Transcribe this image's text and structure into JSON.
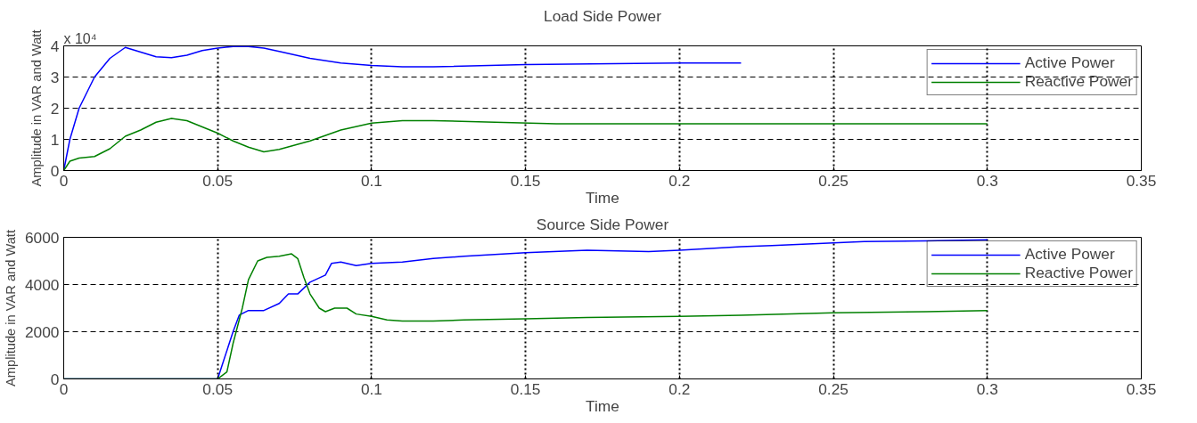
{
  "chart_data": [
    {
      "type": "line",
      "title": "Load Side Power",
      "xlabel": "Time",
      "ylabel": "Amplitude in VAR and Watt",
      "annotations": [
        "x 10⁴"
      ],
      "xlim": [
        0,
        0.35
      ],
      "xticks": [
        0,
        0.05,
        0.1,
        0.15,
        0.2,
        0.25,
        0.3,
        0.35
      ],
      "ylim": [
        0,
        4
      ],
      "yticks": [
        0,
        1,
        2,
        3,
        4
      ],
      "grid": true,
      "legend": "top right",
      "line_style": "solid",
      "series": [
        {
          "name": "Active Power",
          "color": "#0000ff",
          "x": [
            0,
            0.001,
            0.002,
            0.005,
            0.01,
            0.015,
            0.02,
            0.025,
            0.03,
            0.035,
            0.04,
            0.045,
            0.05,
            0.055,
            0.06,
            0.065,
            0.07,
            0.08,
            0.09,
            0.1,
            0.11,
            0.12,
            0.15,
            0.2,
            0.22
          ],
          "values": [
            0,
            0.5,
            1.0,
            2.0,
            3.0,
            3.6,
            3.95,
            3.8,
            3.65,
            3.62,
            3.7,
            3.85,
            3.93,
            3.98,
            3.98,
            3.93,
            3.82,
            3.6,
            3.45,
            3.37,
            3.33,
            3.33,
            3.4,
            3.45,
            3.45
          ]
        },
        {
          "name": "Reactive Power",
          "color": "#008000",
          "x": [
            0,
            0.002,
            0.005,
            0.01,
            0.015,
            0.02,
            0.025,
            0.03,
            0.035,
            0.04,
            0.045,
            0.05,
            0.055,
            0.06,
            0.065,
            0.07,
            0.08,
            0.09,
            0.1,
            0.11,
            0.12,
            0.14,
            0.16,
            0.2,
            0.25,
            0.3
          ],
          "values": [
            0,
            0.3,
            0.4,
            0.45,
            0.7,
            1.1,
            1.3,
            1.55,
            1.67,
            1.6,
            1.4,
            1.2,
            0.95,
            0.75,
            0.6,
            0.68,
            0.95,
            1.3,
            1.52,
            1.6,
            1.6,
            1.55,
            1.5,
            1.5,
            1.5,
            1.5
          ]
        }
      ]
    },
    {
      "type": "line",
      "title": "Source Side Power",
      "xlabel": "Time",
      "ylabel": "Amplitude in VAR and Watt",
      "xlim": [
        0,
        0.35
      ],
      "xticks": [
        0,
        0.05,
        0.1,
        0.15,
        0.2,
        0.25,
        0.3,
        0.35
      ],
      "ylim": [
        0,
        6000
      ],
      "yticks": [
        0,
        2000,
        4000,
        6000
      ],
      "grid": true,
      "legend": "top right",
      "line_style": "solid",
      "series": [
        {
          "name": "Active Power",
          "color": "#0000ff",
          "x": [
            0,
            0.05,
            0.052,
            0.055,
            0.057,
            0.06,
            0.065,
            0.07,
            0.073,
            0.076,
            0.08,
            0.085,
            0.087,
            0.09,
            0.095,
            0.1,
            0.11,
            0.12,
            0.13,
            0.15,
            0.17,
            0.19,
            0.2,
            0.22,
            0.23,
            0.26,
            0.28,
            0.3
          ],
          "values": [
            0,
            0,
            800,
            2000,
            2700,
            2900,
            2900,
            3200,
            3600,
            3600,
            4100,
            4400,
            4900,
            4950,
            4800,
            4900,
            4950,
            5100,
            5200,
            5350,
            5450,
            5400,
            5450,
            5600,
            5650,
            5820,
            5850,
            5900
          ]
        },
        {
          "name": "Reactive Power",
          "color": "#008000",
          "x": [
            0,
            0.05,
            0.053,
            0.055,
            0.058,
            0.06,
            0.063,
            0.066,
            0.07,
            0.074,
            0.076,
            0.078,
            0.08,
            0.083,
            0.085,
            0.088,
            0.092,
            0.095,
            0.1,
            0.105,
            0.11,
            0.12,
            0.13,
            0.15,
            0.17,
            0.2,
            0.22,
            0.25,
            0.28,
            0.3
          ],
          "values": [
            0,
            0,
            300,
            1500,
            3000,
            4200,
            5000,
            5150,
            5200,
            5300,
            5100,
            4300,
            3600,
            3000,
            2850,
            3000,
            3000,
            2750,
            2650,
            2500,
            2450,
            2450,
            2500,
            2550,
            2600,
            2650,
            2700,
            2800,
            2850,
            2900
          ]
        }
      ]
    }
  ]
}
